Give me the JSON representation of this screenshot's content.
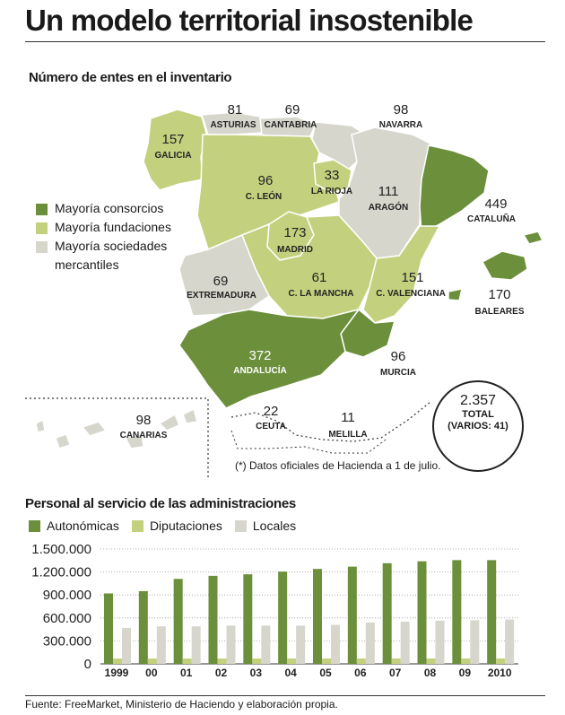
{
  "header": {
    "title": "Un modelo territorial insostenible",
    "map_subtitle": "Número de entes en el inventario",
    "note": "(*) Datos oficiales de Hacienda a 1 de julio.",
    "source": "Fuente: FreeMarket, Ministerio de Haciendo y elaboración propia."
  },
  "map_legend": {
    "consorcios": "Mayoría consorcios",
    "fundaciones": "Mayoría fundaciones",
    "sociedades": "Mayoría sociedades mercantiles"
  },
  "colors": {
    "consorcios": "#6b8f3a",
    "fundaciones": "#c3d17e",
    "sociedades": "#d6d6cc",
    "autonomicas": "#6b8f3a",
    "diputaciones": "#c3d17e",
    "locales": "#d6d6cc"
  },
  "regions": [
    {
      "name": "GALICIA",
      "value": "157",
      "category": "fundaciones"
    },
    {
      "name": "ASTURIAS",
      "value": "81",
      "category": "sociedades"
    },
    {
      "name": "CANTABRIA",
      "value": "69",
      "category": "sociedades"
    },
    {
      "name": "NAVARRA",
      "value": "98",
      "category": "sociedades"
    },
    {
      "name": "C. LEÓN",
      "value": "96",
      "category": "fundaciones"
    },
    {
      "name": "LA RIOJA",
      "value": "33",
      "category": "fundaciones"
    },
    {
      "name": "ARAGÓN",
      "value": "111",
      "category": "sociedades"
    },
    {
      "name": "CATALUÑA",
      "value": "449",
      "category": "consorcios"
    },
    {
      "name": "MADRID",
      "value": "173",
      "category": "fundaciones"
    },
    {
      "name": "EXTREMADURA",
      "value": "69",
      "category": "sociedades"
    },
    {
      "name": "C. LA MANCHA",
      "value": "61",
      "category": "fundaciones"
    },
    {
      "name": "C. VALENCIANA",
      "value": "151",
      "category": "fundaciones"
    },
    {
      "name": "BALEARES",
      "value": "170",
      "category": "consorcios"
    },
    {
      "name": "ANDALUCÍA",
      "value": "372",
      "category": "consorcios"
    },
    {
      "name": "MURCIA",
      "value": "96",
      "category": "consorcios"
    },
    {
      "name": "CEUTA",
      "value": "22",
      "category": "none"
    },
    {
      "name": "MELILLA",
      "value": "11",
      "category": "none"
    },
    {
      "name": "CANARIAS",
      "value": "98",
      "category": "sociedades"
    }
  ],
  "total": {
    "value": "2.357",
    "label1": "TOTAL",
    "label2": "(VARIOS: 41)"
  },
  "chart_data": {
    "type": "bar",
    "title": "Personal al servicio de las administraciones",
    "categories": [
      "1999",
      "00",
      "01",
      "02",
      "03",
      "04",
      "05",
      "06",
      "07",
      "08",
      "09",
      "2010"
    ],
    "series": [
      {
        "name": "Autonómicas",
        "values": [
          920000,
          950000,
          1110000,
          1150000,
          1170000,
          1205000,
          1240000,
          1270000,
          1315000,
          1340000,
          1355000,
          1355000
        ]
      },
      {
        "name": "Diputaciones",
        "values": [
          70000,
          70000,
          70000,
          70000,
          70000,
          70000,
          70000,
          70000,
          70000,
          70000,
          70000,
          70000
        ]
      },
      {
        "name": "Locales",
        "values": [
          470000,
          490000,
          490000,
          500000,
          500000,
          500000,
          510000,
          540000,
          550000,
          565000,
          570000,
          580000
        ]
      }
    ],
    "yticks": [
      "1.500.000",
      "1.200.000",
      "900.000",
      "600.000",
      "300.000",
      "0"
    ],
    "ytick_values": [
      1500000,
      1200000,
      900000,
      600000,
      300000,
      0
    ],
    "ylim": [
      0,
      1500000
    ],
    "grid": true,
    "legend": "top-left"
  }
}
